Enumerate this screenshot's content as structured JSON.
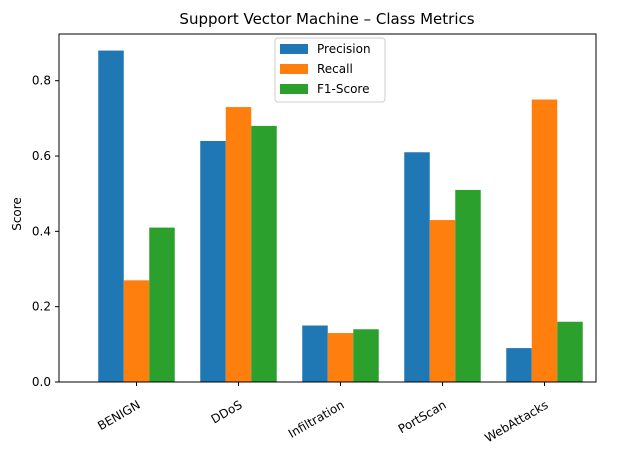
{
  "chart_data": {
    "type": "bar",
    "title": "Support Vector Machine – Class Metrics",
    "xlabel": "",
    "ylabel": "Score",
    "categories": [
      "BENIGN",
      "DDoS",
      "Infiltration",
      "PortScan",
      "WebAttacks"
    ],
    "series": [
      {
        "name": "Precision",
        "color": "#1f77b4",
        "values": [
          0.88,
          0.64,
          0.15,
          0.61,
          0.09
        ]
      },
      {
        "name": "Recall",
        "color": "#ff7f0e",
        "values": [
          0.27,
          0.73,
          0.13,
          0.43,
          0.75
        ]
      },
      {
        "name": "F1-Score",
        "color": "#2ca02c",
        "values": [
          0.41,
          0.68,
          0.14,
          0.51,
          0.16
        ]
      }
    ],
    "ylim": [
      0,
      0.924
    ],
    "yticks": [
      "0.0",
      "0.2",
      "0.4",
      "0.6",
      "0.8"
    ],
    "grid": false,
    "legend": "upper center"
  }
}
